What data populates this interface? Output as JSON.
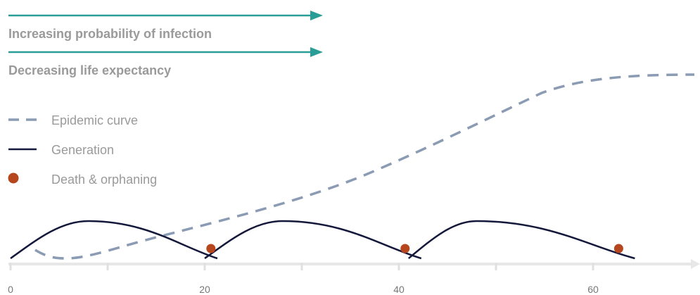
{
  "colors": {
    "arrow_teal": "#2a9d97",
    "epidemic_curve": "#8a9bb3",
    "generation_line": "#14183a",
    "death_marker": "#b6461d",
    "axis_line": "#e7e7e7",
    "axis_tick": "#e0e0e0",
    "text_gray": "#9a9a9a"
  },
  "arrows": {
    "infection_label": "Increasing probability of infection",
    "life_expectancy_label": "Decreasing life expectancy"
  },
  "legend": {
    "epidemic_curve": "Epidemic curve",
    "generation": "Generation",
    "death_orphaning": "Death & orphaning"
  },
  "axis": {
    "x_ticks": [
      "0",
      "20",
      "40",
      "60"
    ],
    "x_tick_values": [
      0,
      20,
      40,
      60
    ],
    "minor_tick_values": [
      0,
      10,
      20,
      30,
      40,
      50,
      60
    ],
    "x_range": [
      0,
      71
    ]
  },
  "chart_data": {
    "type": "line",
    "x_ticks": [
      0,
      20,
      40,
      60
    ],
    "generation_curves": [
      {
        "start": 0,
        "end": 20,
        "peak": 8
      },
      {
        "start": 20,
        "end": 41,
        "peak": 28
      },
      {
        "start": 41,
        "end": 63,
        "peak": 48
      }
    ],
    "death_orphaning_points": [
      21,
      41,
      63
    ],
    "epidemic_curve_shape": "rising sigmoid"
  }
}
